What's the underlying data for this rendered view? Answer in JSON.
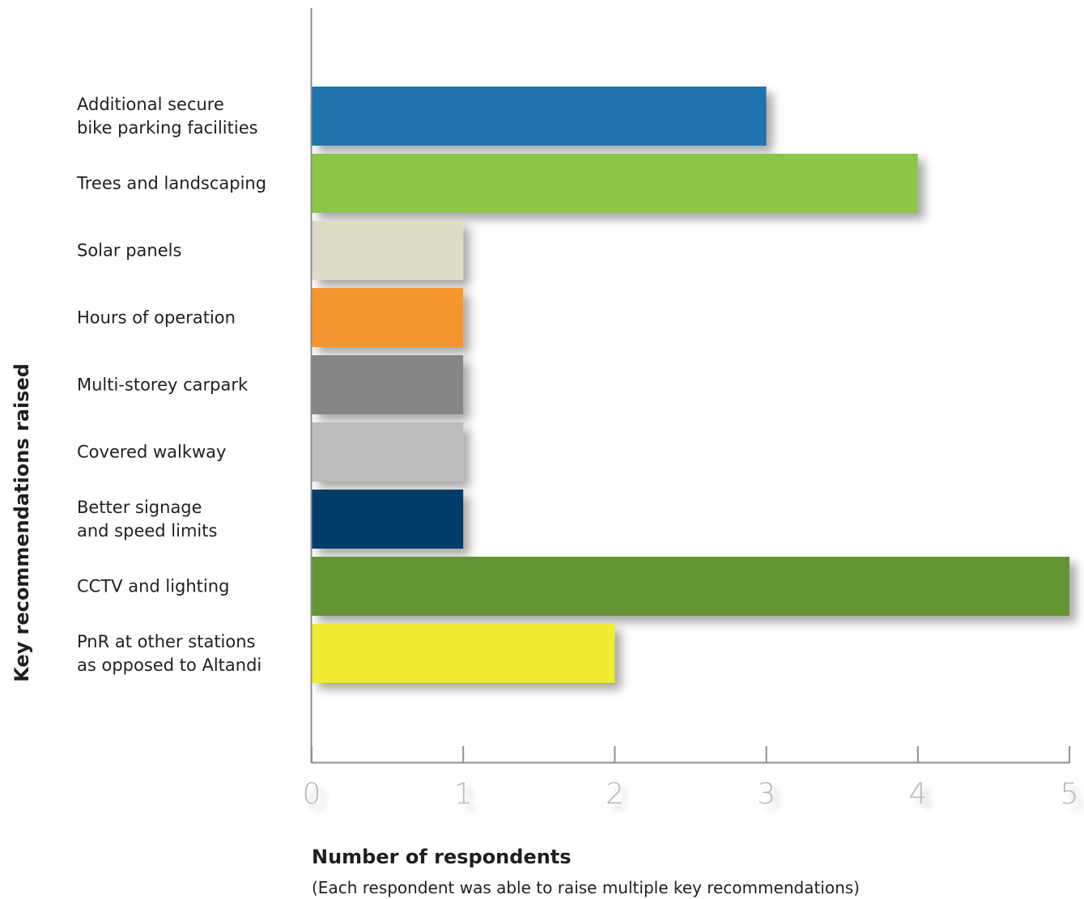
{
  "chart_data": {
    "type": "bar",
    "orientation": "horizontal",
    "categories": [
      "Additional secure bike parking facilities",
      "Trees and landscaping",
      "Solar panels",
      "Hours of operation",
      "Multi-storey carpark",
      "Covered walkway",
      "Better signage and speed limits",
      "CCTV and lighting",
      "PnR at other stations as opposed to Altandi"
    ],
    "category_lines": [
      [
        "Additional secure",
        "bike parking facilities"
      ],
      [
        "Trees and landscaping"
      ],
      [
        "Solar panels"
      ],
      [
        "Hours of operation"
      ],
      [
        "Multi-storey carpark"
      ],
      [
        "Covered walkway"
      ],
      [
        "Better signage",
        "and speed limits"
      ],
      [
        "CCTV and lighting"
      ],
      [
        "PnR at other stations",
        "as opposed to Altandi"
      ]
    ],
    "values": [
      3,
      4,
      1,
      1,
      1,
      1,
      1,
      5,
      2
    ],
    "colors": [
      "#2472ad",
      "#8bc64a",
      "#dedbc6",
      "#f7962f",
      "#848587",
      "#bcbdbf",
      "#043e69",
      "#639536",
      "#f1eb33"
    ],
    "xlim": [
      0,
      5
    ],
    "xticks": [
      "0",
      "1",
      "2",
      "3",
      "4",
      "5"
    ],
    "xlabel": "Number of respondents",
    "xlabel_note": "(Each respondent was able to raise multiple key recommendations)",
    "ylabel": "Key recommendations raised",
    "grid": false,
    "legend": false
  }
}
